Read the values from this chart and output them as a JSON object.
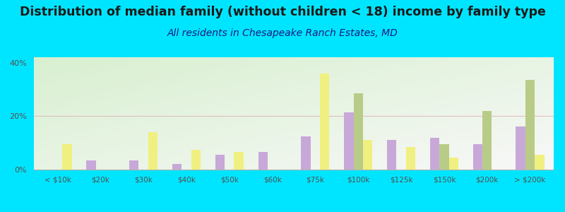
{
  "title": "Distribution of median family (without children < 18) income by family type",
  "subtitle": "All residents in Chesapeake Ranch Estates, MD",
  "categories": [
    "< $10k",
    "$20k",
    "$30k",
    "$40k",
    "$50k",
    "$60k",
    "$75k",
    "$100k",
    "$125k",
    "$150k",
    "$200k",
    "> $200k"
  ],
  "married_couple": [
    0,
    3.5,
    3.5,
    2.0,
    5.5,
    6.5,
    12.5,
    21.5,
    11.0,
    12.0,
    9.5,
    16.0
  ],
  "male_no_wife": [
    0,
    0,
    0,
    0,
    0,
    0,
    0,
    28.5,
    0,
    9.5,
    22.0,
    33.5
  ],
  "female_no_husband": [
    9.5,
    0,
    14.0,
    7.5,
    6.5,
    0,
    36.0,
    11.0,
    8.5,
    4.5,
    0,
    5.5
  ],
  "male_no_wife_legend_color": "#d4c87a",
  "color_married": "#c8a8d8",
  "color_male": "#b8cc88",
  "color_female": "#f0f080",
  "background_color_outer": "#00e5ff",
  "title_fontsize": 12.5,
  "subtitle_fontsize": 10,
  "ylim": [
    0,
    42
  ],
  "yticks": [
    0,
    20,
    40
  ],
  "ytick_labels": [
    "0%",
    "20%",
    "40%"
  ],
  "gridline_20_color": "#e0c0c0",
  "bar_width": 0.22
}
